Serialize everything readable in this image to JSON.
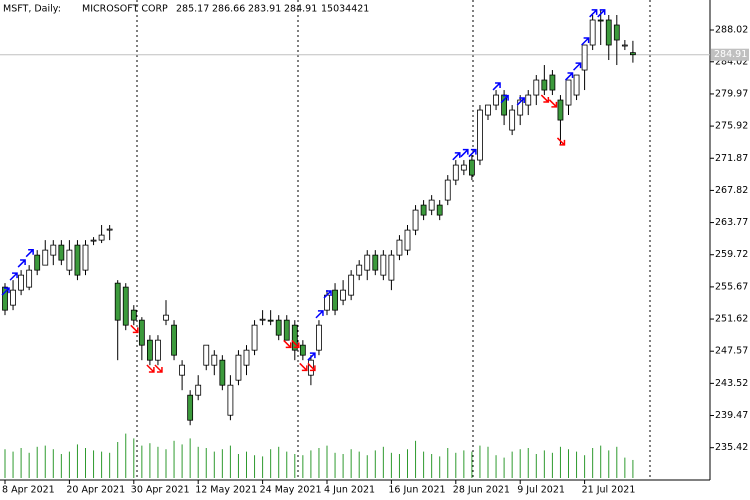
{
  "chart_data": {
    "type": "candlestick",
    "title": "MSFT, Daily:",
    "description": "MICROSOFT CORP",
    "categories": [
      "8 Apr 2021",
      null,
      null,
      null,
      null,
      null,
      null,
      null,
      "20 Apr 2021",
      null,
      null,
      null,
      null,
      null,
      null,
      null,
      "30 Apr 2021",
      null,
      null,
      null,
      null,
      null,
      null,
      null,
      "12 May 2021",
      null,
      null,
      null,
      null,
      null,
      null,
      null,
      "24 May 2021",
      null,
      null,
      null,
      null,
      null,
      null,
      null,
      "4 Jun 2021",
      null,
      null,
      null,
      null,
      null,
      null,
      null,
      "16 Jun 2021",
      null,
      null,
      null,
      null,
      null,
      null,
      null,
      "28 Jun 2021",
      null,
      null,
      null,
      null,
      null,
      null,
      null,
      "9 Jul 2021",
      null,
      null,
      null,
      null,
      null,
      null,
      null,
      "21 Jul 2021",
      null,
      null,
      null,
      null,
      null,
      null
    ],
    "open": [
      255.64,
      253.37,
      255.26,
      255.64,
      259.67,
      258.41,
      259.67,
      260.93,
      257.78,
      260.93,
      257.78,
      261.45,
      261.56,
      262.82,
      256.14,
      255.64,
      252.74,
      251.48,
      248.96,
      246.44,
      251.48,
      250.85,
      244.55,
      242.03,
      242.03,
      245.81,
      245.81,
      246.44,
      239.51,
      243.92,
      245.81,
      247.7,
      251.48,
      251.48,
      251.48,
      251.48,
      250.85,
      248.33,
      244.55,
      247.7,
      252.74,
      255.26,
      254.0,
      254.63,
      257.15,
      257.78,
      259.67,
      257.15,
      256.52,
      259.67,
      260.3,
      262.82,
      265.97,
      265.34,
      265.97,
      266.6,
      269.12,
      270.38,
      271.64,
      271.64,
      277.31,
      278.57,
      279.83,
      275.42,
      277.31,
      278.57,
      279.83,
      281.72,
      282.35,
      279.2,
      278.57,
      279.83,
      282.98,
      286.13,
      289.28,
      289.28,
      288.65,
      286.13,
      285.17
    ],
    "high": [
      256.14,
      256.52,
      257.78,
      258.41,
      260.3,
      261.56,
      261.56,
      261.56,
      261.56,
      261.56,
      261.56,
      261.94,
      263.46,
      263.46,
      256.52,
      256.14,
      253.37,
      251.86,
      249.59,
      249.59,
      254.0,
      251.48,
      246.44,
      242.66,
      244.55,
      248.33,
      247.7,
      247.07,
      244.55,
      247.7,
      248.33,
      251.48,
      252.74,
      252.74,
      252.11,
      252.11,
      251.48,
      248.96,
      247.07,
      251.48,
      255.26,
      256.14,
      256.52,
      257.78,
      259.04,
      260.3,
      260.3,
      260.3,
      260.3,
      262.19,
      263.46,
      265.97,
      266.6,
      267.23,
      266.6,
      269.75,
      271.64,
      271.64,
      272.27,
      278.57,
      278.57,
      280.46,
      280.46,
      278.57,
      279.83,
      280.46,
      282.35,
      283.61,
      282.98,
      279.83,
      281.72,
      282.35,
      286.13,
      289.91,
      290.54,
      289.91,
      289.91,
      286.76,
      286.66
    ],
    "low": [
      252.11,
      252.74,
      254.63,
      255.26,
      257.15,
      258.41,
      258.41,
      258.41,
      257.15,
      256.52,
      257.15,
      260.93,
      261.19,
      261.56,
      246.44,
      250.22,
      250.85,
      246.44,
      245.81,
      245.81,
      250.85,
      246.44,
      242.66,
      238.25,
      241.4,
      245.18,
      244.55,
      242.66,
      238.88,
      243.29,
      244.55,
      247.07,
      250.85,
      250.85,
      248.96,
      248.96,
      246.44,
      246.44,
      243.29,
      247.07,
      252.11,
      252.11,
      253.37,
      254.0,
      256.52,
      256.52,
      257.15,
      256.52,
      255.26,
      259.04,
      259.67,
      262.19,
      264.08,
      264.71,
      264.08,
      265.97,
      268.49,
      269.75,
      269.12,
      271.01,
      276.68,
      277.94,
      276.05,
      274.79,
      276.05,
      277.31,
      278.57,
      279.83,
      279.83,
      273.53,
      277.31,
      279.2,
      280.46,
      285.5,
      286.13,
      284.24,
      283.61,
      285.5,
      283.91
    ],
    "close": [
      252.74,
      255.26,
      257.15,
      257.78,
      257.78,
      260.3,
      260.93,
      259.04,
      260.3,
      257.15,
      260.93,
      261.56,
      262.19,
      262.95,
      251.48,
      250.85,
      251.48,
      248.33,
      246.44,
      248.96,
      252.11,
      247.07,
      245.81,
      238.88,
      243.29,
      248.33,
      247.07,
      243.29,
      243.29,
      247.07,
      247.7,
      250.85,
      251.6,
      251.35,
      249.59,
      248.96,
      247.7,
      247.07,
      246.44,
      250.85,
      254.63,
      252.74,
      255.26,
      257.15,
      258.41,
      259.67,
      257.78,
      259.67,
      259.67,
      261.56,
      262.82,
      265.34,
      264.71,
      266.6,
      264.71,
      269.12,
      271.01,
      271.01,
      269.75,
      277.94,
      278.57,
      279.83,
      277.31,
      277.94,
      279.2,
      279.83,
      281.72,
      280.46,
      280.46,
      276.68,
      281.72,
      282.35,
      286.13,
      289.28,
      289.15,
      286.13,
      286.76,
      286.13,
      284.91
    ],
    "volume": [
      24000000,
      22000000,
      25000000,
      21000000,
      26000000,
      27000000,
      24000000,
      20000000,
      22000000,
      28000000,
      25000000,
      23000000,
      22000000,
      21000000,
      30000000,
      37000000,
      33000000,
      27000000,
      29000000,
      26000000,
      24000000,
      31000000,
      28000000,
      33000000,
      26000000,
      25000000,
      22000000,
      24000000,
      27000000,
      20000000,
      22000000,
      19000000,
      18000000,
      24000000,
      26000000,
      22000000,
      20000000,
      19000000,
      23000000,
      25000000,
      27000000,
      21000000,
      20000000,
      24000000,
      22000000,
      19000000,
      23000000,
      26000000,
      21000000,
      20000000,
      24000000,
      31000000,
      22000000,
      20000000,
      18000000,
      25000000,
      21000000,
      23000000,
      22000000,
      27000000,
      26000000,
      19000000,
      17000000,
      22000000,
      24000000,
      25000000,
      20000000,
      23000000,
      21000000,
      26000000,
      24000000,
      22000000,
      19000000,
      25000000,
      27000000,
      23000000,
      26000000,
      17000000,
      15034421
    ],
    "buy_arrows": [
      255.26,
      257.15,
      258.8,
      260.1,
      null,
      null,
      null,
      null,
      null,
      null,
      null,
      null,
      null,
      null,
      null,
      null,
      null,
      null,
      null,
      null,
      null,
      null,
      null,
      null,
      null,
      null,
      null,
      null,
      null,
      null,
      null,
      null,
      null,
      null,
      null,
      null,
      null,
      null,
      247.07,
      252.4,
      254.9,
      null,
      null,
      null,
      null,
      null,
      null,
      null,
      null,
      null,
      null,
      null,
      null,
      null,
      null,
      null,
      272.3,
      272.7,
      272.7,
      null,
      null,
      281.1,
      279.5,
      null,
      279.2,
      null,
      null,
      null,
      null,
      null,
      282.35,
      283.6,
      286.76,
      290.3,
      290.3,
      null,
      null,
      null,
      null
    ],
    "sell_arrows": [
      null,
      null,
      null,
      null,
      null,
      null,
      null,
      null,
      null,
      null,
      null,
      null,
      null,
      null,
      null,
      null,
      250.2,
      null,
      245.2,
      245.2,
      null,
      null,
      null,
      null,
      null,
      null,
      null,
      null,
      null,
      null,
      null,
      null,
      null,
      null,
      null,
      248.3,
      248.3,
      245.4,
      245.4,
      null,
      null,
      null,
      null,
      null,
      null,
      null,
      null,
      null,
      null,
      null,
      null,
      null,
      null,
      null,
      null,
      null,
      null,
      null,
      null,
      null,
      null,
      null,
      null,
      null,
      null,
      null,
      null,
      279.2,
      278.6,
      273.8,
      null,
      null,
      null,
      null,
      null,
      null,
      null,
      null,
      null
    ],
    "ylim": [
      231.35,
      291.8
    ],
    "yticks": [
      288.02,
      284.02,
      279.97,
      275.92,
      271.87,
      267.82,
      263.77,
      259.72,
      255.67,
      251.62,
      247.57,
      243.52,
      239.47,
      235.42
    ],
    "volume_lim": [
      0,
      40000000
    ],
    "up_color": "#ffffff",
    "down_color": "#3c9a3c",
    "volume_color": "#2e9a2e",
    "buy_color": "#0000ff",
    "sell_color": "#ff0000",
    "grid": false
  }
}
